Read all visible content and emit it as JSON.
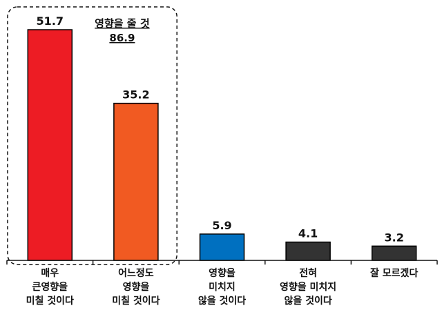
{
  "chart_data": {
    "type": "bar",
    "categories": [
      [
        "매우",
        "큰영향을",
        "미칠 것이다"
      ],
      [
        "어느정도",
        "영향을",
        "미칠 것이다"
      ],
      [
        "영향을",
        "미치지",
        "않을 것이다"
      ],
      [
        "전혀",
        "영향을 미치지",
        "않을 것이다"
      ],
      [
        "잘 모르겠다"
      ]
    ],
    "values": [
      51.7,
      35.2,
      5.9,
      4.1,
      3.2
    ],
    "value_labels": [
      "51.7",
      "35.2",
      "5.9",
      "4.1",
      "3.2"
    ],
    "bar_colors": [
      "#ed1c24",
      "#f15a22",
      "#0070c0",
      "#333333",
      "#333333"
    ],
    "ylim": [
      0,
      60
    ],
    "grid": false,
    "annotation": {
      "label": "영향을 줄 것",
      "value": "86.9",
      "covers_categories": [
        0,
        1
      ]
    }
  }
}
